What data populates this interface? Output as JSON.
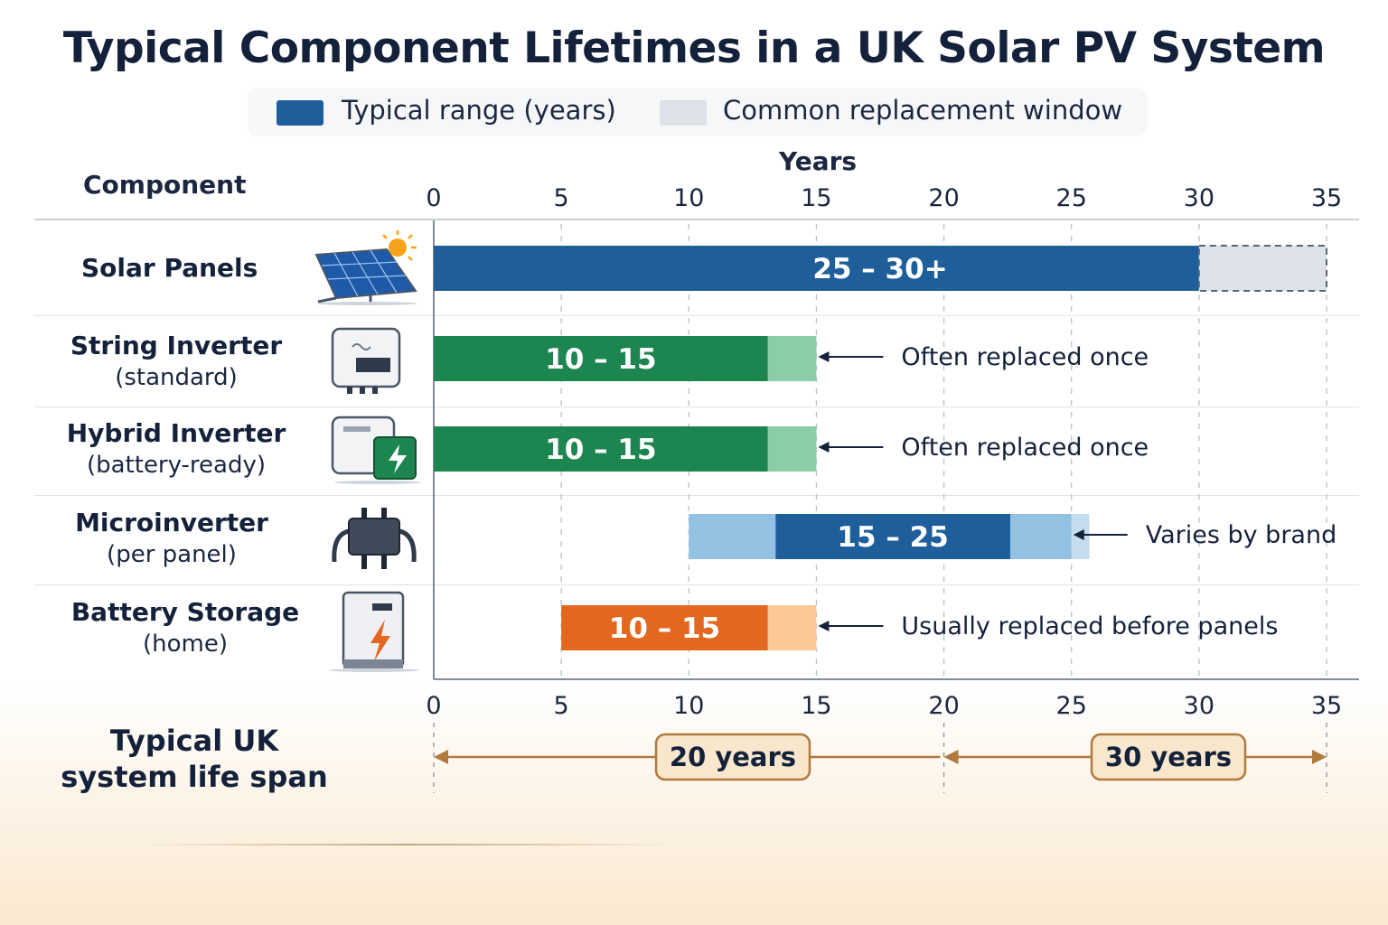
{
  "chart_data": {
    "type": "bar",
    "title": "Typical Component Lifetimes in a UK Solar PV System",
    "legend": [
      {
        "label": "Typical range (years)",
        "color": "#1d5e9b"
      },
      {
        "label": "Common replacement window",
        "color": "#dde2e8"
      }
    ],
    "legend_placement": "top",
    "category_header": "Component",
    "xlabel": "Years",
    "xlim": [
      0,
      35
    ],
    "xticks": [
      "0",
      "5",
      "10",
      "15",
      "20",
      "25",
      "30",
      "35"
    ],
    "grid": true,
    "categories": [
      {
        "name": "Solar Panels",
        "sub": "",
        "icon": "solar-panel-icon",
        "label": "25 – 30+",
        "segments": [
          {
            "start": 0,
            "end": 30,
            "color": "#1d5e9b"
          },
          {
            "start": 30,
            "end": 35,
            "color": "#dde2e8",
            "dashed": true
          }
        ],
        "annotation": ""
      },
      {
        "name": "String Inverter",
        "sub": "(standard)",
        "icon": "string-inverter-icon",
        "label": "10 – 15",
        "segments": [
          {
            "start": 0,
            "end": 13.1,
            "color": "#1d8550"
          },
          {
            "start": 13.1,
            "end": 15,
            "color": "#8ccca6"
          }
        ],
        "annotation": "Often replaced once"
      },
      {
        "name": "Hybrid Inverter",
        "sub": "(battery-ready)",
        "icon": "hybrid-inverter-icon",
        "label": "10 – 15",
        "segments": [
          {
            "start": 0,
            "end": 13.1,
            "color": "#1d8550"
          },
          {
            "start": 13.1,
            "end": 15,
            "color": "#8ccca6"
          }
        ],
        "annotation": "Often replaced once"
      },
      {
        "name": "Microinverter",
        "sub": "(per panel)",
        "icon": "microinverter-icon",
        "label": "15 – 25",
        "segments": [
          {
            "start": 10,
            "end": 13.4,
            "color": "#92c1e2"
          },
          {
            "start": 13.4,
            "end": 22.6,
            "color": "#1d5e9b"
          },
          {
            "start": 22.6,
            "end": 25,
            "color": "#92c1e2"
          },
          {
            "start": 25,
            "end": 25.7,
            "color": "#c4dced"
          }
        ],
        "annotation": "Varies by brand"
      },
      {
        "name": "Battery Storage",
        "sub": "(home)",
        "icon": "battery-storage-icon",
        "label": "10 – 15",
        "segments": [
          {
            "start": 5,
            "end": 13.1,
            "color": "#e4671f"
          },
          {
            "start": 13.1,
            "end": 15,
            "color": "#fbc995"
          }
        ],
        "annotation": "Usually replaced before panels"
      }
    ],
    "lifespan": {
      "label": "Typical UK system life span",
      "spans": [
        {
          "start": 0,
          "end": 20,
          "label": "20 years"
        },
        {
          "start": 20,
          "end": 35,
          "label": "30 years"
        }
      ]
    }
  }
}
